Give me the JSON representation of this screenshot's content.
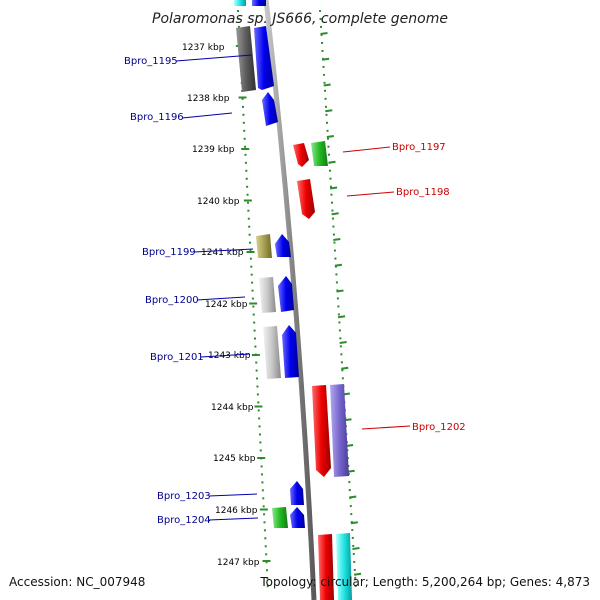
{
  "title": "Polaromonas sp. JS666, complete genome",
  "footer": {
    "accession": "Accession: NC_007948",
    "topology": "Topology: circular; Length: 5,200,264 bp; Genes: 4,873"
  },
  "colors": {
    "backbone": "#8f8f8f",
    "dots": "#2e8b2e",
    "reverse_label": "#00008b",
    "forward_label": "#cc0000"
  },
  "ticks": [
    "1237 kbp",
    "1238 kbp",
    "1239 kbp",
    "1240 kbp",
    "1241 kbp",
    "1242 kbp",
    "1243 kbp",
    "1244 kbp",
    "1245 kbp",
    "1246 kbp",
    "1247 kbp"
  ],
  "genes": [
    {
      "name": "Bpro_1195",
      "strand": "reverse"
    },
    {
      "name": "Bpro_1196",
      "strand": "reverse"
    },
    {
      "name": "Bpro_1197",
      "strand": "forward"
    },
    {
      "name": "Bpro_1198",
      "strand": "forward"
    },
    {
      "name": "Bpro_1199",
      "strand": "reverse"
    },
    {
      "name": "Bpro_1200",
      "strand": "reverse"
    },
    {
      "name": "Bpro_1201",
      "strand": "reverse"
    },
    {
      "name": "Bpro_1202",
      "strand": "forward"
    },
    {
      "name": "Bpro_1203",
      "strand": "reverse"
    },
    {
      "name": "Bpro_1204",
      "strand": "reverse"
    }
  ]
}
